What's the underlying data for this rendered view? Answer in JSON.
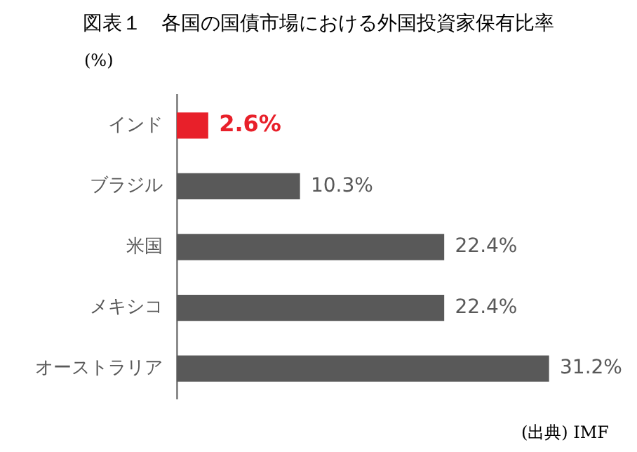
{
  "chart_data": {
    "type": "bar",
    "orientation": "horizontal",
    "title": "図表１　各国の国債市場における外国投資家保有比率",
    "xlabel": "(%)",
    "categories": [
      "インド",
      "ブラジル",
      "米国",
      "メキシコ",
      "オーストラリア"
    ],
    "values": [
      2.6,
      10.3,
      22.4,
      22.4,
      31.2
    ],
    "colors": [
      "#e8202a",
      "#595959",
      "#595959",
      "#595959",
      "#595959"
    ],
    "value_labels": [
      "2.6%",
      "10.3%",
      "22.4%",
      "22.4%",
      "31.2%"
    ],
    "grid": false,
    "legend": false,
    "annotations": [
      "(出典) IMF"
    ]
  }
}
